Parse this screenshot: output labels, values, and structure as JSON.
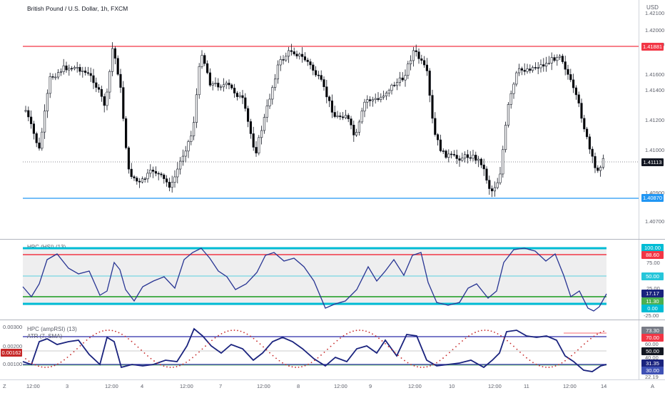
{
  "chart": {
    "title": "British Pound / U.S. Dollar, 1h, FXCM",
    "currency": "USD",
    "y_ticks": [
      "1.42100",
      "1.42000",
      "1.41800",
      "1.41600",
      "1.41400",
      "1.41200",
      "1.41000",
      "1.40900",
      "1.40700"
    ],
    "resistance_label": "1.41881",
    "current_label": "1.41113",
    "support_label": "1.40870",
    "colors": {
      "resistance": "#f23645",
      "support": "#2196f3",
      "current": "#131722",
      "up": "#ffffff",
      "down": "#000000"
    }
  },
  "indicator1": {
    "title": "HPC (HSI) (13)",
    "labels": {
      "top": "100.00",
      "upper": "88.60",
      "mid": "50.00",
      "value": "17.17",
      "lower": "11.30",
      "bottom": "0.00",
      "neg": "-25.00",
      "tick75": "75.00",
      "tick25": "25.00"
    }
  },
  "indicator2": {
    "title": "HPC (ampRSI) (13)",
    "subtitle": "ATR (7, SMA)",
    "left_ticks": [
      "0.00300",
      "0.00200",
      "0.00100"
    ],
    "atr_badge": "0.00162",
    "labels": {
      "l1": "73.30",
      "l2": "70.00",
      "l3": "60.00",
      "l4": "50.00",
      "l5": "40.00",
      "l6": "31.35",
      "l7": "30.00",
      "l8": "22.19"
    }
  },
  "time_axis": [
    "12:00",
    "3",
    "12:00",
    "4",
    "12:00",
    "7",
    "12:00",
    "8",
    "12:00",
    "9",
    "12:00",
    "10",
    "12:00",
    "11",
    "12:00",
    "14"
  ],
  "time_axis_edges": {
    "left": "Z",
    "right": "A"
  }
}
